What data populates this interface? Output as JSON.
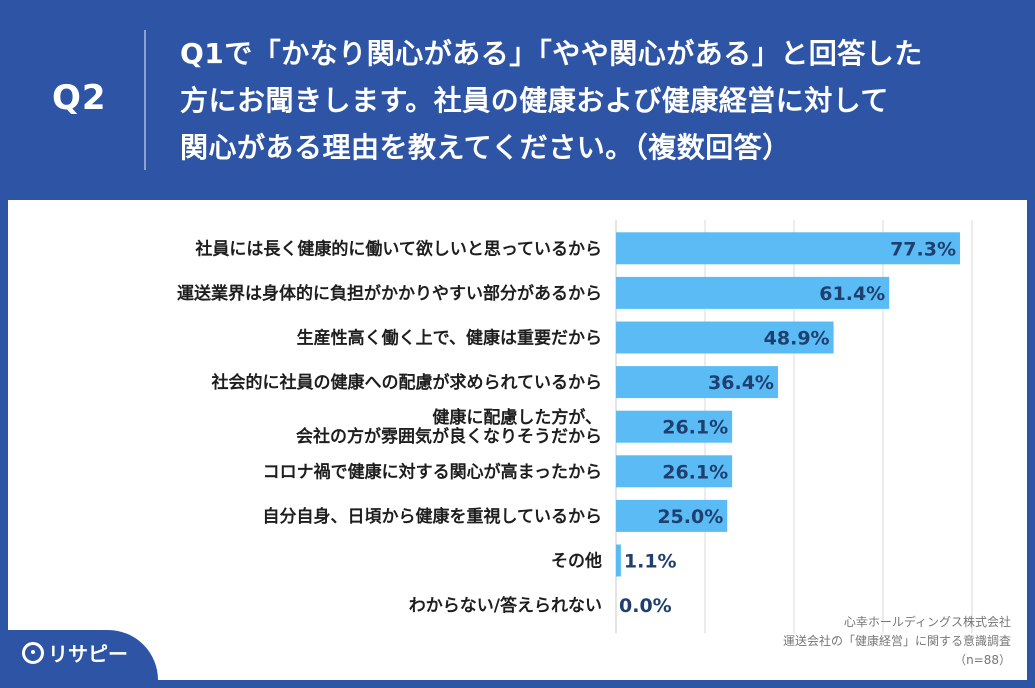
{
  "header": {
    "q_number": "Q2",
    "question_lines": [
      "Q1で「かなり関心がある」「やや関心がある」と回答した",
      "方にお聞きします。社員の健康および健康経営に対して",
      "関心がある理由を教えてください。（複数回答）"
    ]
  },
  "chart_data": {
    "type": "bar",
    "orientation": "horizontal",
    "categories": [
      "社員には長く健康的に働いて欲しいと思っているから",
      "運送業界は身体的に負担がかかりやすい部分があるから",
      "生産性高く働く上で、健康は重要だから",
      "社会的に社員の健康への配慮が求められているから",
      "健康に配慮した方が、\n会社の方が雰囲気が良くなりそうだから",
      "コロナ禍で健康に対する関心が高まったから",
      "自分自身、日頃から健康を重視しているから",
      "その他",
      "わからない/答えられない"
    ],
    "values": [
      77.3,
      61.4,
      48.9,
      36.4,
      26.1,
      26.1,
      25.0,
      1.1,
      0.0
    ],
    "value_labels": [
      "77.3%",
      "61.4%",
      "48.9%",
      "36.4%",
      "26.1%",
      "26.1%",
      "25.0%",
      "1.1%",
      "0.0%"
    ],
    "xlim": [
      0,
      100
    ],
    "grid": true,
    "bar_color": "#5bbcf5"
  },
  "source": {
    "line1": "心幸ホールディングス株式会社",
    "line2": "運送会社の「健康経営」に関する意識調査",
    "line3": "（n=88）"
  },
  "brand": {
    "name": "リサピー"
  }
}
